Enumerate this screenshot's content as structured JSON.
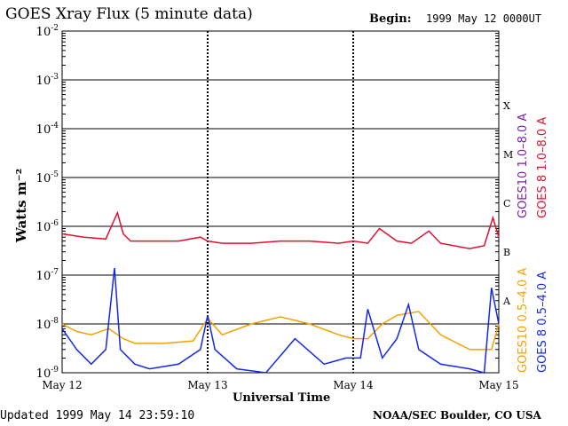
{
  "header": {
    "title": "GOES Xray Flux (5 minute data)",
    "begin_label": "Begin:",
    "begin_value": "1999 May 12 0000UT"
  },
  "footer": {
    "updated": "Updated 1999 May 14 23:59:10",
    "credit": "NOAA/SEC Boulder, CO USA"
  },
  "chart_data": {
    "type": "line",
    "title": "GOES Xray Flux (5 minute data)",
    "xlabel": "Universal Time",
    "ylabel": "Watts m⁻²",
    "yscale": "log",
    "ylim": [
      1e-09,
      0.01
    ],
    "yticks": [
      {
        "value": 0.01,
        "base": "10",
        "exp": "-2"
      },
      {
        "value": 0.001,
        "base": "10",
        "exp": "-3"
      },
      {
        "value": 0.0001,
        "base": "10",
        "exp": "-4"
      },
      {
        "value": 1e-05,
        "base": "10",
        "exp": "-5"
      },
      {
        "value": 1e-06,
        "base": "10",
        "exp": "-6"
      },
      {
        "value": 1e-07,
        "base": "10",
        "exp": "-7"
      },
      {
        "value": 1e-08,
        "base": "10",
        "exp": "-8"
      },
      {
        "value": 1e-09,
        "base": "10",
        "exp": "-9"
      }
    ],
    "xlim": [
      "1999-05-12 00:00",
      "1999-05-15 00:00"
    ],
    "xticks": [
      "May 12",
      "May 13",
      "May 14",
      "May 15"
    ],
    "flare_classes": [
      {
        "label": "X",
        "value": 0.0003
      },
      {
        "label": "M",
        "value": 3e-05
      },
      {
        "label": "C",
        "value": 3e-06
      },
      {
        "label": "B",
        "value": 3e-07
      },
      {
        "label": "A",
        "value": 3e-08
      }
    ],
    "grid": true,
    "series": [
      {
        "name": "GOES10 1.0–8.0 A",
        "color": "#7a1fb0",
        "values": []
      },
      {
        "name": "GOES 8 1.0–8.0 A",
        "color": "#e0102f",
        "x_days": [
          0,
          0.15,
          0.3,
          0.38,
          0.42,
          0.47,
          0.6,
          0.8,
          0.95,
          1.0,
          1.1,
          1.3,
          1.5,
          1.7,
          1.9,
          2.0,
          2.1,
          2.18,
          2.3,
          2.4,
          2.52,
          2.6,
          2.8,
          2.9,
          2.96,
          3.0
        ],
        "values": [
          7e-07,
          6e-07,
          5.5e-07,
          1.9e-06,
          7e-07,
          5e-07,
          5e-07,
          5e-07,
          6e-07,
          5e-07,
          4.5e-07,
          4.5e-07,
          5e-07,
          5e-07,
          4.5e-07,
          5e-07,
          4.5e-07,
          9e-07,
          5e-07,
          4.5e-07,
          8e-07,
          4.5e-07,
          3.5e-07,
          4e-07,
          1.5e-06,
          6e-07
        ]
      },
      {
        "name": "GOES10 0.5–4.0 A",
        "color": "#f5a100",
        "x_days": [
          0,
          0.1,
          0.2,
          0.32,
          0.42,
          0.5,
          0.7,
          0.9,
          1.0,
          1.1,
          1.3,
          1.5,
          1.7,
          1.9,
          2.0,
          2.1,
          2.2,
          2.3,
          2.45,
          2.6,
          2.8,
          2.95,
          3.0
        ],
        "values": [
          1e-08,
          7e-09,
          6e-09,
          8e-09,
          5e-09,
          4e-09,
          4e-09,
          4.5e-09,
          1.3e-08,
          6e-09,
          1e-08,
          1.4e-08,
          1e-08,
          6e-09,
          5e-09,
          5e-09,
          1e-08,
          1.5e-08,
          1.8e-08,
          6e-09,
          3e-09,
          3e-09,
          1e-08
        ]
      },
      {
        "name": "GOES 8 0.5–4.0 A",
        "color": "#1428e8",
        "x_days": [
          0,
          0.1,
          0.2,
          0.3,
          0.36,
          0.4,
          0.5,
          0.6,
          0.8,
          0.95,
          1.0,
          1.05,
          1.2,
          1.4,
          1.6,
          1.8,
          1.95,
          2.05,
          2.1,
          2.2,
          2.3,
          2.38,
          2.45,
          2.6,
          2.8,
          2.9,
          2.95,
          3.0
        ],
        "values": [
          8e-09,
          3e-09,
          1.5e-09,
          3e-09,
          1.4e-07,
          3e-09,
          1.5e-09,
          1.2e-09,
          1.5e-09,
          3e-09,
          1.5e-08,
          3e-09,
          1.2e-09,
          1e-09,
          5e-09,
          1.5e-09,
          2e-09,
          2e-09,
          2e-08,
          2e-09,
          5e-09,
          2.5e-08,
          3e-09,
          1.5e-09,
          1.2e-09,
          1e-09,
          5.5e-08,
          1e-08
        ]
      }
    ]
  }
}
